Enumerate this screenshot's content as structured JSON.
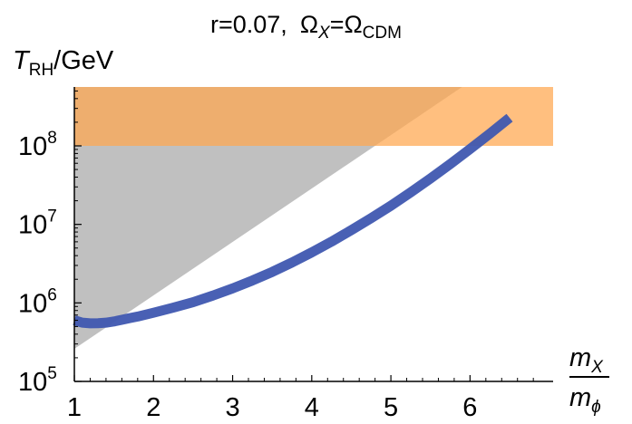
{
  "chart_data": {
    "type": "line",
    "title": {
      "main": "r=0.07,",
      "omega_left": "Ω",
      "omega_left_sub": "X",
      "equals": "=Ω",
      "omega_right_sub": "CDM"
    },
    "ylabel": {
      "symbol": "T",
      "sub": "RH",
      "unit": "/GeV"
    },
    "xlabel": {
      "numerator": "m",
      "numerator_sub": "X",
      "denominator": "m",
      "denominator_sub": "ϕ"
    },
    "xlim": [
      1,
      6.5
    ],
    "ylim": [
      100000,
      600000000
    ],
    "y_scale": "log",
    "x_ticks": [
      {
        "value": 1,
        "label": "1"
      },
      {
        "value": 2,
        "label": "2"
      },
      {
        "value": 3,
        "label": "3"
      },
      {
        "value": 4,
        "label": "4"
      },
      {
        "value": 5,
        "label": "5"
      },
      {
        "value": 6,
        "label": "6"
      }
    ],
    "y_ticks": [
      {
        "value": 100000,
        "base": "10",
        "exp": "5"
      },
      {
        "value": 1000000,
        "base": "10",
        "exp": "6"
      },
      {
        "value": 10000000,
        "base": "10",
        "exp": "7"
      },
      {
        "value": 100000000,
        "base": "10",
        "exp": "8"
      }
    ],
    "series": [
      {
        "role": "curve",
        "color": "#3f57b0",
        "x": [
          1.0,
          1.1,
          1.2,
          1.3,
          1.4,
          1.5,
          1.6,
          1.7,
          1.8,
          2.0,
          2.25,
          2.5,
          2.75,
          3.0,
          3.25,
          3.5,
          3.75,
          4.0,
          4.25,
          4.5,
          4.75,
          5.0,
          5.25,
          5.5,
          5.75,
          6.0,
          6.25,
          6.5
        ],
        "y": [
          600000,
          560000,
          550000,
          552000,
          560000,
          580000,
          610000,
          640000,
          670000,
          750000,
          870000,
          1020000,
          1240000,
          1530000,
          1930000,
          2480000,
          3270000,
          4400000,
          6030000,
          8450000,
          12000000,
          17300000,
          25600000,
          38400000,
          58700000,
          91000000,
          143000000,
          228000000
        ]
      }
    ],
    "regions": [
      {
        "role": "excluded-triangle",
        "color": "#c0c0c0",
        "polygon": [
          [
            1.0,
            260000
          ],
          [
            5.9,
            600000000
          ],
          [
            1.0,
            600000000
          ]
        ]
      },
      {
        "role": "upper-band",
        "color": "#ffa64d",
        "y_range": [
          100000000,
          600000000
        ],
        "x_range": [
          1.0,
          6.5
        ]
      }
    ],
    "grid": false,
    "legend": "none"
  }
}
